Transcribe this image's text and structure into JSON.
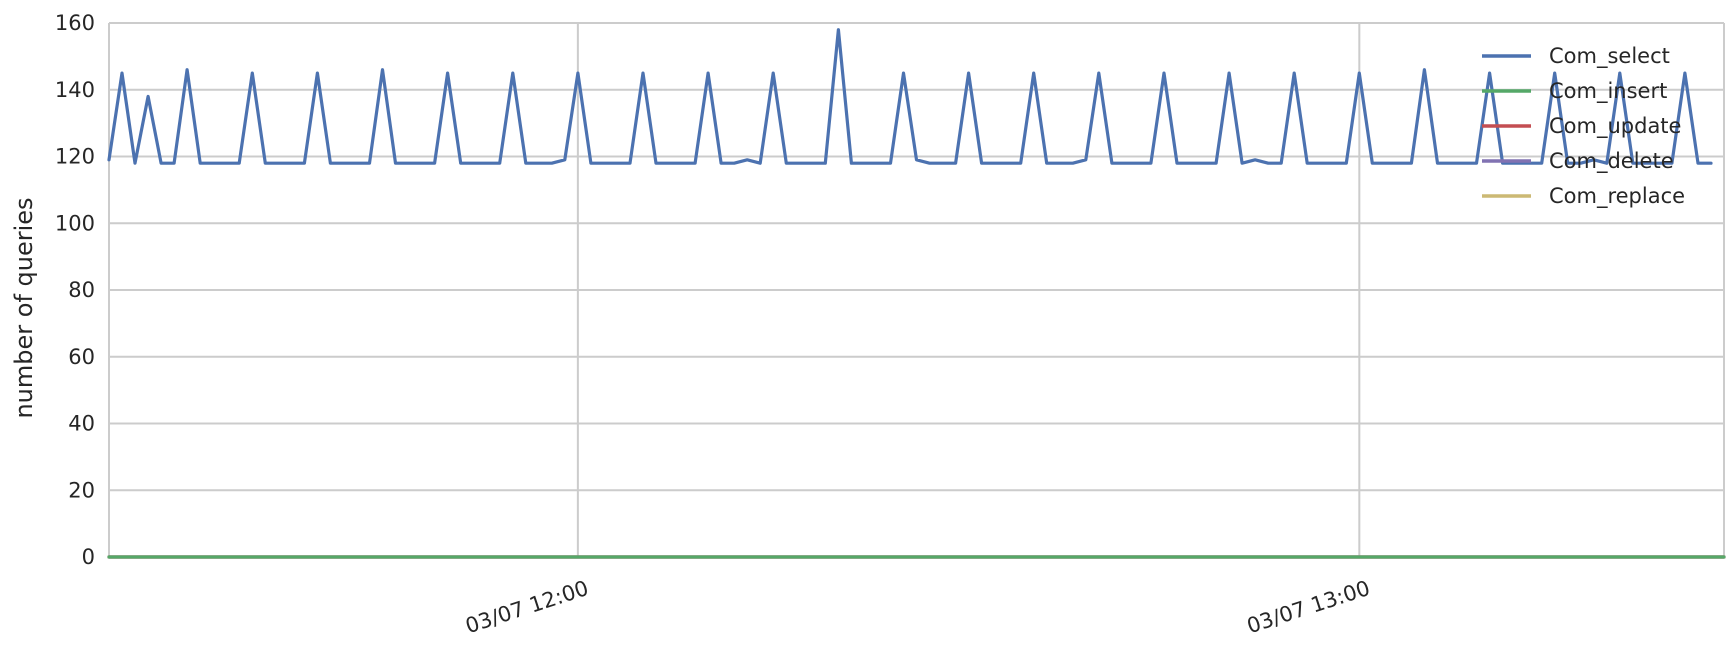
{
  "chart_data": {
    "type": "line",
    "title": "",
    "xlabel": "",
    "ylabel": "number of queries",
    "ylim": [
      0,
      160
    ],
    "yticks": [
      0,
      20,
      40,
      60,
      80,
      100,
      120,
      140,
      160
    ],
    "xlim": [
      "03/07 11:24",
      "03/07 13:28"
    ],
    "xticks": [
      {
        "value": "03/07 12:00",
        "label": "03/07 12:00"
      },
      {
        "value": "03/07 13:00",
        "label": "03/07 13:00"
      }
    ],
    "x_interval_minutes": 1,
    "grid": true,
    "legend": "top-right",
    "series": [
      {
        "name": "Com_select",
        "color": "#4c72b0",
        "values": [
          119,
          145,
          118,
          138,
          118,
          118,
          146,
          118,
          118,
          118,
          118,
          145,
          118,
          118,
          118,
          118,
          145,
          118,
          118,
          118,
          118,
          146,
          118,
          118,
          118,
          118,
          145,
          118,
          118,
          118,
          118,
          145,
          118,
          118,
          118,
          119,
          145,
          118,
          118,
          118,
          118,
          145,
          118,
          118,
          118,
          118,
          145,
          118,
          118,
          119,
          118,
          145,
          118,
          118,
          118,
          118,
          158,
          118,
          118,
          118,
          118,
          145,
          119,
          118,
          118,
          118,
          145,
          118,
          118,
          118,
          118,
          145,
          118,
          118,
          118,
          119,
          145,
          118,
          118,
          118,
          118,
          145,
          118,
          118,
          118,
          118,
          145,
          118,
          119,
          118,
          118,
          145,
          118,
          118,
          118,
          118,
          145,
          118,
          118,
          118,
          118,
          146,
          118,
          118,
          118,
          118,
          145,
          118,
          118,
          118,
          118,
          145,
          118,
          118,
          119,
          118,
          145,
          118,
          118,
          118,
          118,
          145,
          118,
          118
        ]
      },
      {
        "name": "Com_insert",
        "color": "#55a868",
        "values": [
          0,
          0
        ]
      },
      {
        "name": "Com_update",
        "color": "#c44e52",
        "values": [
          0,
          0
        ]
      },
      {
        "name": "Com_delete",
        "color": "#8172b2",
        "values": [
          0,
          0
        ]
      },
      {
        "name": "Com_replace",
        "color": "#ccb974",
        "values": [
          0,
          0
        ]
      }
    ]
  }
}
